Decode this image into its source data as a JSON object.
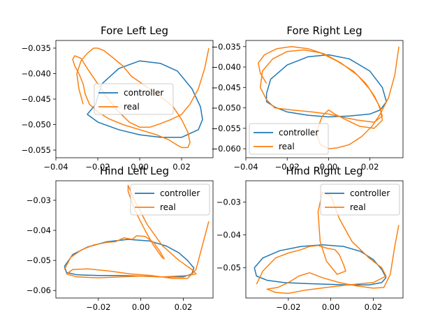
{
  "colors": {
    "controller": "#1f77b4",
    "real": "#ff7f0e"
  },
  "chart_data": [
    {
      "type": "line",
      "title": "Fore Left Leg",
      "xlabel": "",
      "ylabel": "",
      "xlim": [
        -0.04,
        0.035
      ],
      "ylim": [
        -0.0565,
        -0.0335
      ],
      "xticks": [
        -0.04,
        -0.02,
        0.0,
        0.02
      ],
      "xtick_labels": [
        "−0.04",
        "−0.02",
        "0.00",
        "0.02"
      ],
      "yticks": [
        -0.055,
        -0.05,
        -0.045,
        -0.04,
        -0.035
      ],
      "ytick_labels": [
        "−0.055",
        "−0.050",
        "−0.045",
        "−0.040",
        "−0.035"
      ],
      "legend": "center-left",
      "series": [
        {
          "name": "controller",
          "x": [
            -0.02,
            -0.018,
            -0.01,
            0.0,
            0.01,
            0.018,
            0.025,
            0.029,
            0.03,
            0.028,
            0.02,
            0.01,
            0.0,
            -0.01,
            -0.02,
            -0.025,
            -0.021,
            -0.02
          ],
          "y": [
            -0.0445,
            -0.042,
            -0.039,
            -0.0375,
            -0.038,
            -0.0395,
            -0.043,
            -0.0465,
            -0.049,
            -0.051,
            -0.0525,
            -0.0525,
            -0.052,
            -0.051,
            -0.0495,
            -0.048,
            -0.046,
            -0.0445
          ]
        },
        {
          "name": "real",
          "x": [
            -0.027,
            -0.029,
            -0.03,
            -0.028,
            -0.025,
            -0.022,
            -0.02,
            -0.017,
            -0.013,
            -0.008,
            -0.004,
            0.003,
            0.01,
            0.016,
            0.02,
            0.023,
            0.024,
            0.023,
            0.02,
            0.017,
            0.014,
            0.008,
            0.0,
            -0.008,
            -0.015,
            -0.02,
            -0.024,
            -0.026,
            -0.027,
            -0.029,
            -0.031,
            -0.032,
            -0.031,
            -0.028,
            -0.025,
            -0.02,
            -0.015,
            -0.01,
            -0.005,
            0.0,
            0.005,
            0.01,
            0.015,
            0.02,
            0.024,
            0.028,
            0.031,
            0.033
          ],
          "y": [
            -0.046,
            -0.043,
            -0.04,
            -0.0375,
            -0.036,
            -0.035,
            -0.035,
            -0.0355,
            -0.0368,
            -0.0385,
            -0.0405,
            -0.0425,
            -0.0445,
            -0.0465,
            -0.049,
            -0.0515,
            -0.0535,
            -0.0545,
            -0.0545,
            -0.0538,
            -0.053,
            -0.052,
            -0.051,
            -0.05,
            -0.0488,
            -0.0475,
            -0.046,
            -0.044,
            -0.042,
            -0.04,
            -0.0385,
            -0.0372,
            -0.0365,
            -0.037,
            -0.039,
            -0.042,
            -0.045,
            -0.0475,
            -0.0495,
            -0.0505,
            -0.0505,
            -0.0498,
            -0.049,
            -0.048,
            -0.046,
            -0.043,
            -0.039,
            -0.035
          ]
        }
      ]
    },
    {
      "type": "line",
      "title": "Fore Right Leg",
      "xlabel": "",
      "ylabel": "",
      "xlim": [
        -0.04,
        0.036
      ],
      "ylim": [
        -0.0622,
        -0.0335
      ],
      "xticks": [
        -0.04,
        -0.02,
        0.0,
        0.02
      ],
      "xtick_labels": [
        "−0.04",
        "−0.02",
        "0.00",
        "0.02"
      ],
      "yticks": [
        -0.06,
        -0.055,
        -0.05,
        -0.045,
        -0.04,
        -0.035
      ],
      "ytick_labels": [
        "−0.060",
        "−0.055",
        "−0.050",
        "−0.045",
        "−0.040",
        "−0.035"
      ],
      "legend": "lower-left",
      "series": [
        {
          "name": "controller",
          "x": [
            -0.03,
            -0.028,
            -0.02,
            -0.01,
            0.0,
            0.01,
            0.02,
            0.026,
            0.028,
            0.025,
            0.02,
            0.01,
            0.0,
            -0.01,
            -0.02,
            -0.026,
            -0.03,
            -0.03
          ],
          "y": [
            -0.0465,
            -0.043,
            -0.0395,
            -0.0375,
            -0.037,
            -0.038,
            -0.041,
            -0.045,
            -0.0485,
            -0.0505,
            -0.0515,
            -0.052,
            -0.0522,
            -0.0518,
            -0.051,
            -0.0498,
            -0.0485,
            -0.0465
          ]
        },
        {
          "name": "real",
          "x": [
            -0.03,
            -0.033,
            -0.034,
            -0.031,
            -0.025,
            -0.018,
            -0.01,
            -0.002,
            0.006,
            0.014,
            0.02,
            0.024,
            0.026,
            0.022,
            0.014,
            0.006,
            0.0,
            -0.008,
            -0.018,
            -0.026,
            -0.03,
            -0.033,
            -0.032,
            -0.027,
            -0.02,
            -0.012,
            -0.004,
            0.004,
            0.012,
            0.018,
            0.022,
            0.025,
            0.026,
            0.022,
            0.015,
            0.008,
            0.003,
            0.0,
            -0.003,
            -0.006,
            -0.004,
            0.0,
            0.004,
            0.01,
            0.016,
            0.021,
            0.025,
            0.029,
            0.032,
            0.034
          ],
          "y": [
            -0.044,
            -0.0415,
            -0.039,
            -0.037,
            -0.0355,
            -0.035,
            -0.0355,
            -0.0368,
            -0.039,
            -0.042,
            -0.0455,
            -0.049,
            -0.052,
            -0.0535,
            -0.053,
            -0.0522,
            -0.0515,
            -0.051,
            -0.0505,
            -0.05,
            -0.048,
            -0.045,
            -0.041,
            -0.038,
            -0.0362,
            -0.0358,
            -0.0365,
            -0.0385,
            -0.041,
            -0.044,
            -0.047,
            -0.05,
            -0.053,
            -0.055,
            -0.0545,
            -0.0528,
            -0.0515,
            -0.0505,
            -0.052,
            -0.056,
            -0.059,
            -0.06,
            -0.0598,
            -0.059,
            -0.057,
            -0.0545,
            -0.0515,
            -0.0475,
            -0.042,
            -0.035
          ]
        }
      ]
    },
    {
      "type": "line",
      "title": "Hind Left Leg",
      "xlabel": "",
      "ylabel": "",
      "xlim": [
        -0.04,
        0.034
      ],
      "ylim": [
        -0.0625,
        -0.0235
      ],
      "xticks": [
        -0.02,
        0.0,
        0.02
      ],
      "xtick_labels": [
        "−0.02",
        "0.00",
        "0.02"
      ],
      "yticks": [
        -0.06,
        -0.05,
        -0.04,
        -0.03
      ],
      "ytick_labels": [
        "−0.06",
        "−0.05",
        "−0.04",
        "−0.03"
      ],
      "legend": "top-right",
      "series": [
        {
          "name": "controller",
          "x": [
            -0.036,
            -0.032,
            -0.025,
            -0.016,
            -0.006,
            0.004,
            0.012,
            0.018,
            0.022,
            0.025,
            0.024,
            0.02,
            0.01,
            0.0,
            -0.01,
            -0.02,
            -0.03,
            -0.035,
            -0.036
          ],
          "y": [
            -0.052,
            -0.048,
            -0.0455,
            -0.0438,
            -0.043,
            -0.0435,
            -0.0452,
            -0.0475,
            -0.05,
            -0.0525,
            -0.0545,
            -0.0555,
            -0.0555,
            -0.0552,
            -0.055,
            -0.055,
            -0.0548,
            -0.054,
            -0.052
          ]
        },
        {
          "name": "real",
          "x": [
            -0.036,
            -0.033,
            -0.028,
            -0.022,
            -0.016,
            -0.012,
            -0.008,
            -0.004,
            -0.002,
            0.002,
            0.006,
            0.009,
            0.011,
            0.01,
            0.006,
            0.002,
            -0.003,
            -0.006,
            -0.006,
            -0.003,
            0.003,
            0.01,
            0.018,
            0.024,
            0.026,
            0.022,
            0.01,
            0.0,
            -0.01,
            -0.02,
            -0.03,
            -0.035,
            -0.032,
            -0.025,
            -0.015,
            -0.005,
            0.005,
            0.015,
            0.022,
            0.026,
            0.029,
            0.032
          ],
          "y": [
            -0.053,
            -0.049,
            -0.0465,
            -0.0448,
            -0.044,
            -0.0438,
            -0.0425,
            -0.043,
            -0.0418,
            -0.042,
            -0.044,
            -0.047,
            -0.0495,
            -0.049,
            -0.045,
            -0.04,
            -0.033,
            -0.027,
            -0.025,
            -0.03,
            -0.038,
            -0.045,
            -0.05,
            -0.053,
            -0.0545,
            -0.055,
            -0.0555,
            -0.0552,
            -0.0555,
            -0.0558,
            -0.0555,
            -0.0545,
            -0.053,
            -0.0528,
            -0.0535,
            -0.0545,
            -0.055,
            -0.056,
            -0.056,
            -0.053,
            -0.045,
            -0.037
          ]
        }
      ]
    },
    {
      "type": "line",
      "title": "Hind Right Leg",
      "xlabel": "",
      "ylabel": "",
      "xlim": [
        -0.04,
        0.034
      ],
      "ylim": [
        -0.0592,
        -0.0235
      ],
      "xticks": [
        -0.02,
        0.0,
        0.02
      ],
      "xtick_labels": [
        "−0.02",
        "0.00",
        "0.02"
      ],
      "yticks": [
        -0.05,
        -0.04,
        -0.03
      ],
      "ytick_labels": [
        "−0.05",
        "−0.04",
        "−0.03"
      ],
      "legend": "top-right",
      "series": [
        {
          "name": "controller",
          "x": [
            -0.036,
            -0.032,
            -0.024,
            -0.014,
            -0.004,
            0.006,
            0.014,
            0.02,
            0.024,
            0.026,
            0.024,
            0.018,
            0.008,
            -0.002,
            -0.012,
            -0.022,
            -0.03,
            -0.035,
            -0.036
          ],
          "y": [
            -0.05,
            -0.047,
            -0.0448,
            -0.0435,
            -0.043,
            -0.0435,
            -0.045,
            -0.0475,
            -0.0505,
            -0.053,
            -0.0545,
            -0.0552,
            -0.0552,
            -0.055,
            -0.0548,
            -0.0545,
            -0.0538,
            -0.0525,
            -0.05
          ]
        },
        {
          "name": "real",
          "x": [
            -0.035,
            -0.032,
            -0.026,
            -0.02,
            -0.014,
            -0.01,
            -0.006,
            -0.002,
            0.002,
            0.004,
            0.006,
            0.007,
            0.003,
            -0.002,
            -0.005,
            -0.006,
            -0.004,
            0.0,
            0.004,
            0.01,
            0.018,
            0.024,
            0.026,
            0.02,
            0.008,
            -0.002,
            -0.012,
            -0.02,
            -0.026,
            -0.03,
            -0.025,
            -0.02,
            -0.015,
            -0.01,
            -0.004,
            0.004,
            0.012,
            0.02,
            0.025,
            0.028,
            0.03,
            0.032
          ],
          "y": [
            -0.055,
            -0.051,
            -0.047,
            -0.0455,
            -0.0445,
            -0.0435,
            -0.0432,
            -0.044,
            -0.0445,
            -0.046,
            -0.049,
            -0.051,
            -0.052,
            -0.048,
            -0.042,
            -0.033,
            -0.027,
            -0.028,
            -0.035,
            -0.042,
            -0.047,
            -0.05,
            -0.0525,
            -0.0545,
            -0.0552,
            -0.056,
            -0.0568,
            -0.0578,
            -0.0575,
            -0.0565,
            -0.056,
            -0.0545,
            -0.0525,
            -0.0515,
            -0.053,
            -0.0545,
            -0.0555,
            -0.0562,
            -0.056,
            -0.052,
            -0.044,
            -0.037
          ]
        }
      ]
    }
  ]
}
